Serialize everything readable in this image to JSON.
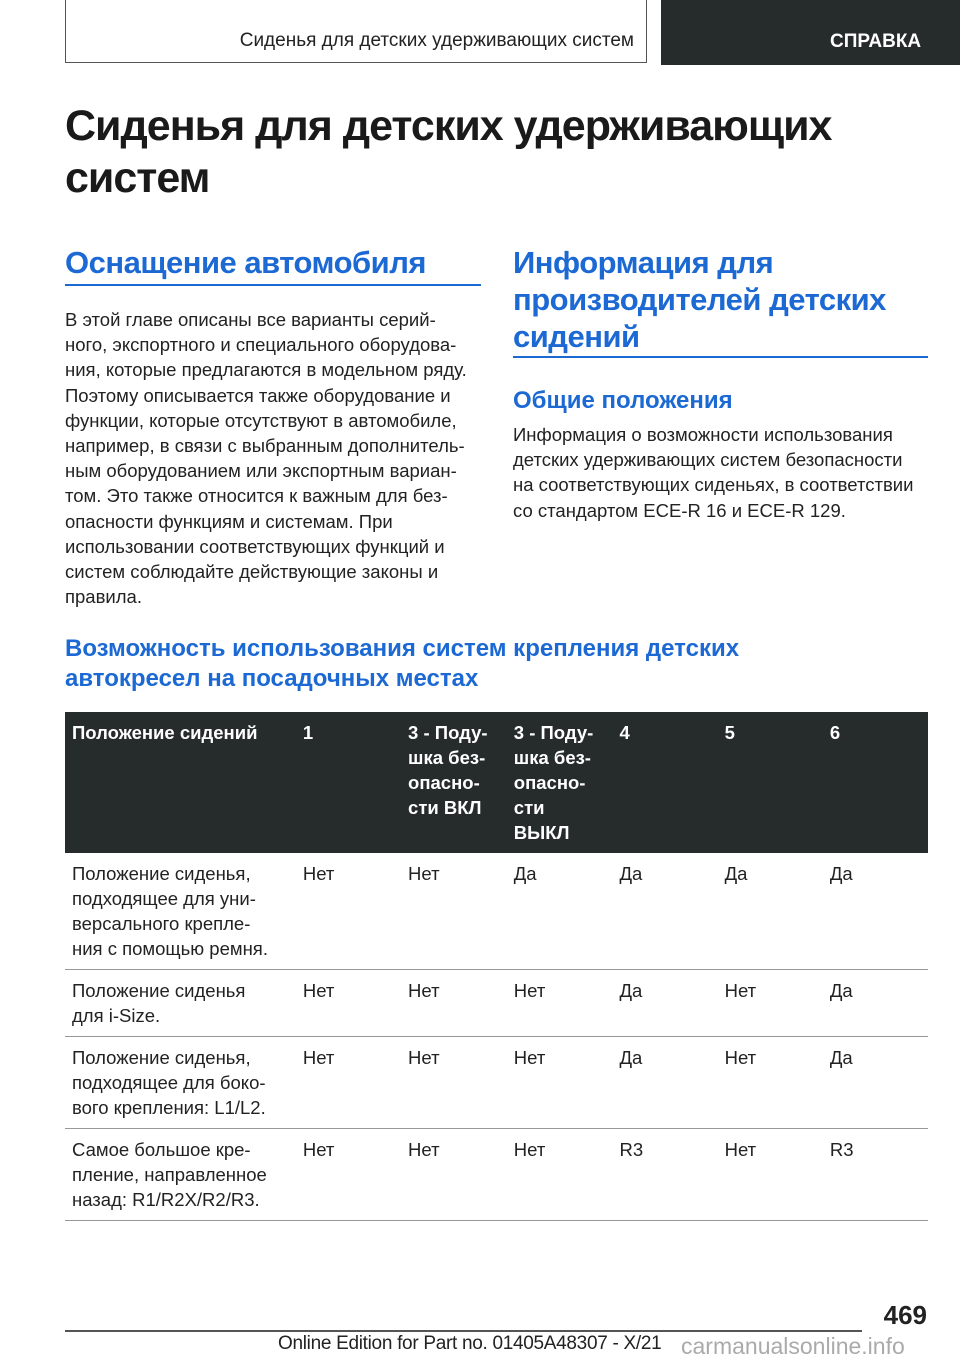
{
  "header": {
    "running_title": "Сиденья для детских удерживающих систем",
    "section_tab": "СПРАВКА"
  },
  "title": "Сиденья для детских удерживающих\nсистем",
  "left": {
    "heading": "Оснащение автомобиля",
    "text": "В этой главе описаны все варианты серий-\nного, экспортного и специального оборудова-\nния, которые предлагаются в модельном ряду.\nПоэтому описывается также оборудование и\nфункции, которые отсутствуют в автомобиле,\nнапример, в связи с выбранным дополнитель-\nным оборудованием или экспортным вариан-\nтом. Это также относится к важным для без-\nопасности функциям и системам. При\nиспользовании соответствующих функций и\nсистем соблюдайте действующие законы и\nправила."
  },
  "right": {
    "heading": "Информация для\nпроизводителей детских\nсидений",
    "subheading": "Общие положения",
    "text": "Информация о возможности использования\nдетских удерживающих систем безопасности\nна соответствующих сиденьях, в соответствии\nсо стандартом ECE-R 16 и ECE-R 129."
  },
  "table_section": {
    "heading": "Возможность использования систем крепления детских\nавтокресел на посадочных местах"
  },
  "table": {
    "headers": [
      "Положение сидений",
      "1",
      "3 - Поду-\nшка без-\nопасно-\nсти ВКЛ",
      "3 - Поду-\nшка без-\nопасно-\nсти\nВЫКЛ",
      "4",
      "5",
      "6"
    ],
    "rows": [
      [
        "Положение сиденья,\nподходящее для уни-\nверсального крепле-\nния с помощью ремня.",
        "Нет",
        "Нет",
        "Да",
        "Да",
        "Да",
        "Да"
      ],
      [
        "Положение сиденья\nдля i-Size.",
        "Нет",
        "Нет",
        "Нет",
        "Да",
        "Нет",
        "Да"
      ],
      [
        "Положение сиденья,\nподходящее для боко-\nвого крепления: L1/L2.",
        "Нет",
        "Нет",
        "Нет",
        "Да",
        "Нет",
        "Да"
      ],
      [
        "Самое большое кре-\nпление, направленное\nназад: R1/R2X/R2/R3.",
        "Нет",
        "Нет",
        "Нет",
        "R3",
        "Нет",
        "R3"
      ]
    ]
  },
  "footer": {
    "page_number": "469",
    "edition": "Online Edition for Part no. 01405A48307 - X/21",
    "watermark": "carmanualsonline.info"
  },
  "colors": {
    "accent": "#1c69d4",
    "dark": "#262b2b"
  }
}
